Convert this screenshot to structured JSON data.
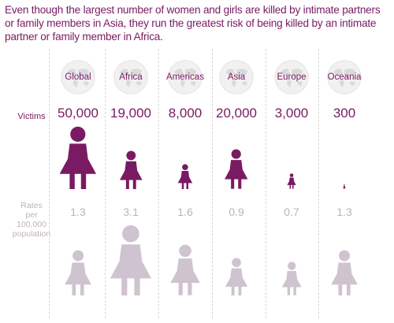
{
  "title": "Even though the largest number of women and girls are killed by intimate partners or family members in Asia, they run the greatest risk of being killed by an intimate partner or family member in Africa.",
  "row_labels": {
    "victims": "Victims",
    "rates_line1": "Rates",
    "rates_line2": "per",
    "rates_line3": "100,000",
    "rates_line4": "population"
  },
  "colors": {
    "victims": "#7a1a62",
    "rates": "#cfc3cf",
    "muted_text": "#bdb3bd"
  },
  "icon": "globe-icon",
  "chart_data": {
    "type": "pictograph",
    "categories": [
      "Global",
      "Africa",
      "Americas",
      "Asia",
      "Europe",
      "Oceania"
    ],
    "series": [
      {
        "name": "Victims",
        "values": [
          50000,
          19000,
          8000,
          20000,
          3000,
          300
        ],
        "labels": [
          "50,000",
          "19,000",
          "8,000",
          "20,000",
          "3,000",
          "300"
        ]
      },
      {
        "name": "Rates per 100,000 population",
        "values": [
          1.3,
          3.1,
          1.6,
          0.9,
          0.7,
          1.3
        ],
        "labels": [
          "1.3",
          "3.1",
          "1.6",
          "0.9",
          "0.7",
          "1.3"
        ]
      }
    ]
  }
}
